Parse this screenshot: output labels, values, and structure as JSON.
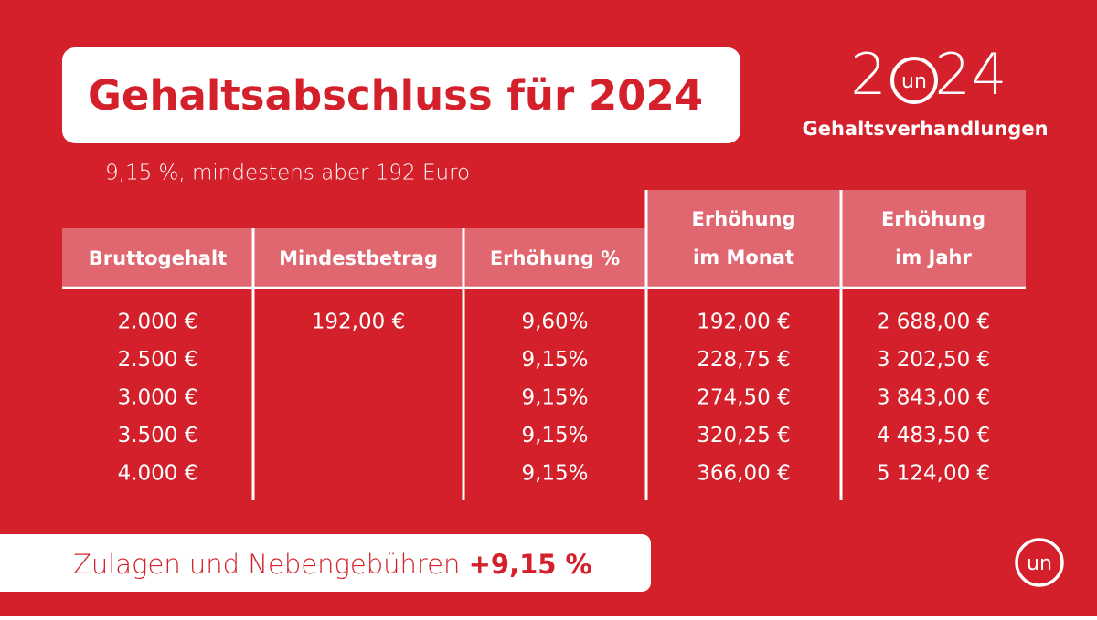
{
  "header": {
    "title": "Gehaltsabschluss für 2024",
    "subtitle": "9,15 %, mindestens aber 192 Euro"
  },
  "brand": {
    "year_start": "2",
    "logo": "un",
    "year_end": "24",
    "caption": "Gehaltsverhandlungen"
  },
  "table": {
    "columns": [
      [
        "Bruttogehalt"
      ],
      [
        "Mindestbetrag"
      ],
      [
        "Erhöhung %"
      ],
      [
        "Erhöhung",
        "im Monat"
      ],
      [
        "Erhöhung",
        "im Jahr"
      ]
    ],
    "rows": [
      [
        "2.000 €",
        "192,00 €",
        "9,60%",
        "192,00 €",
        "2 688,00 €"
      ],
      [
        "2.500 €",
        null,
        "9,15%",
        "228,75 €",
        "3 202,50 €"
      ],
      [
        "3.000 €",
        null,
        "9,15%",
        "274,50 €",
        "3 843,00 €"
      ],
      [
        "3.500 €",
        null,
        "9,15%",
        "320,25 €",
        "4 483,50 €"
      ],
      [
        "4.000 €",
        null,
        "9,15%",
        "366,00 €",
        "5 124,00 €"
      ]
    ]
  },
  "footer": {
    "text": "Zulagen und Nebengebühren",
    "highlight": "+9,15 %"
  }
}
